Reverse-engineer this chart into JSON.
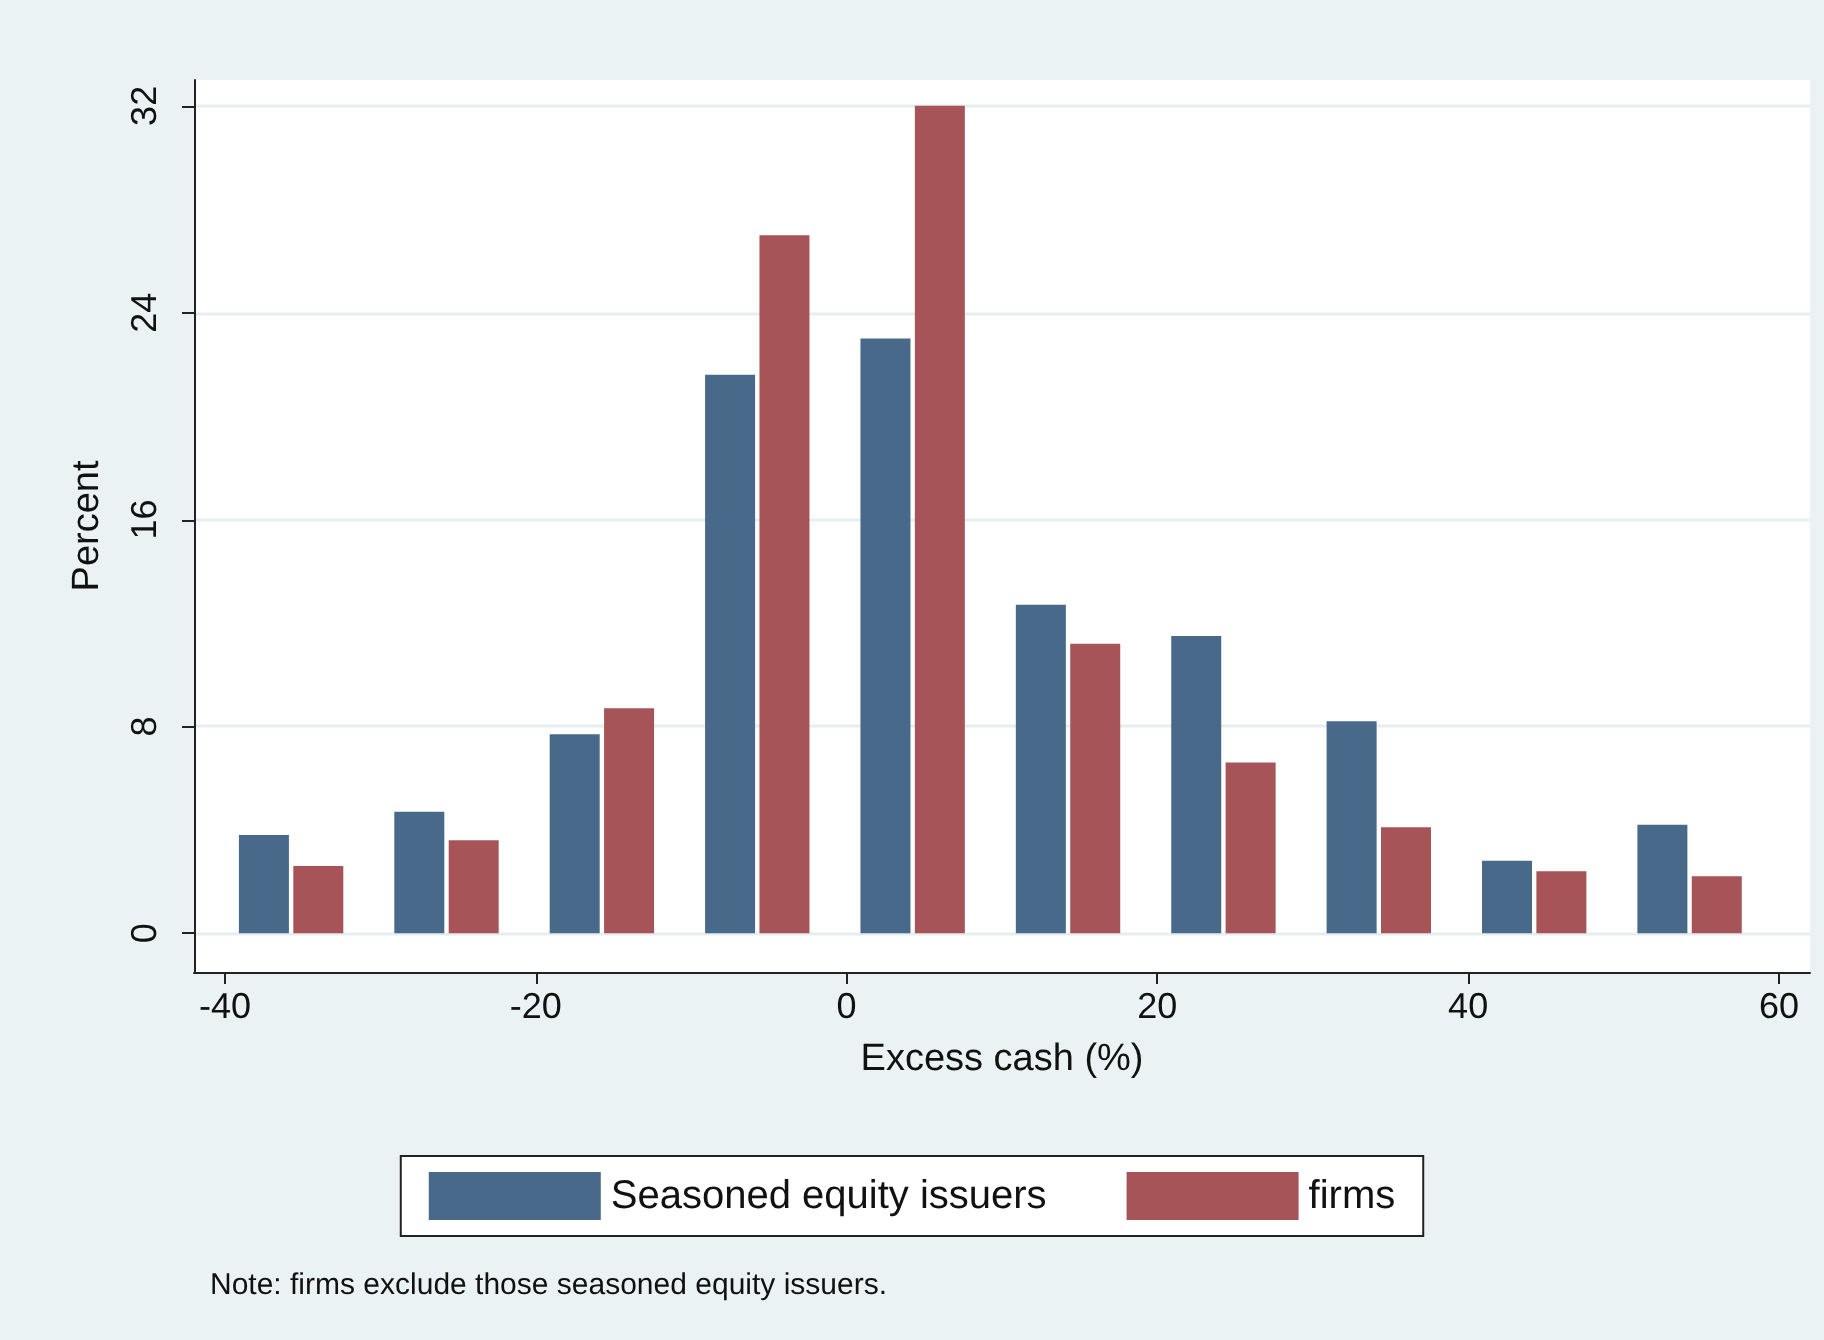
{
  "chart_data": {
    "type": "bar",
    "xlabel": "Excess cash (%)",
    "ylabel": "Percent",
    "xlim": [
      -42,
      62
    ],
    "xticks": [
      -40,
      -20,
      0,
      20,
      40,
      60
    ],
    "ylim": [
      -1.5,
      33
    ],
    "yticks": [
      0,
      8,
      16,
      24,
      32
    ],
    "series": [
      {
        "name": "Seasoned equity issuers",
        "color": "#49698b",
        "x": [
          -37.5,
          -27.5,
          -17.5,
          -7.5,
          2.5,
          12.5,
          22.5,
          32.5,
          42.5,
          52.5
        ],
        "values": [
          3.8,
          4.7,
          7.7,
          21.6,
          23.0,
          12.7,
          11.5,
          8.2,
          2.8,
          4.2
        ]
      },
      {
        "name": "firms",
        "color": "#a65458",
        "x": [
          -34,
          -24,
          -14,
          -4,
          6,
          16,
          26,
          36,
          46,
          56
        ],
        "values": [
          2.6,
          3.6,
          8.7,
          27.0,
          32.0,
          11.2,
          6.6,
          4.1,
          2.4,
          2.2
        ]
      }
    ],
    "grid": "y",
    "legend": "bottom",
    "annotations": [
      "Note: firms exclude those seasoned equity issuers."
    ]
  }
}
